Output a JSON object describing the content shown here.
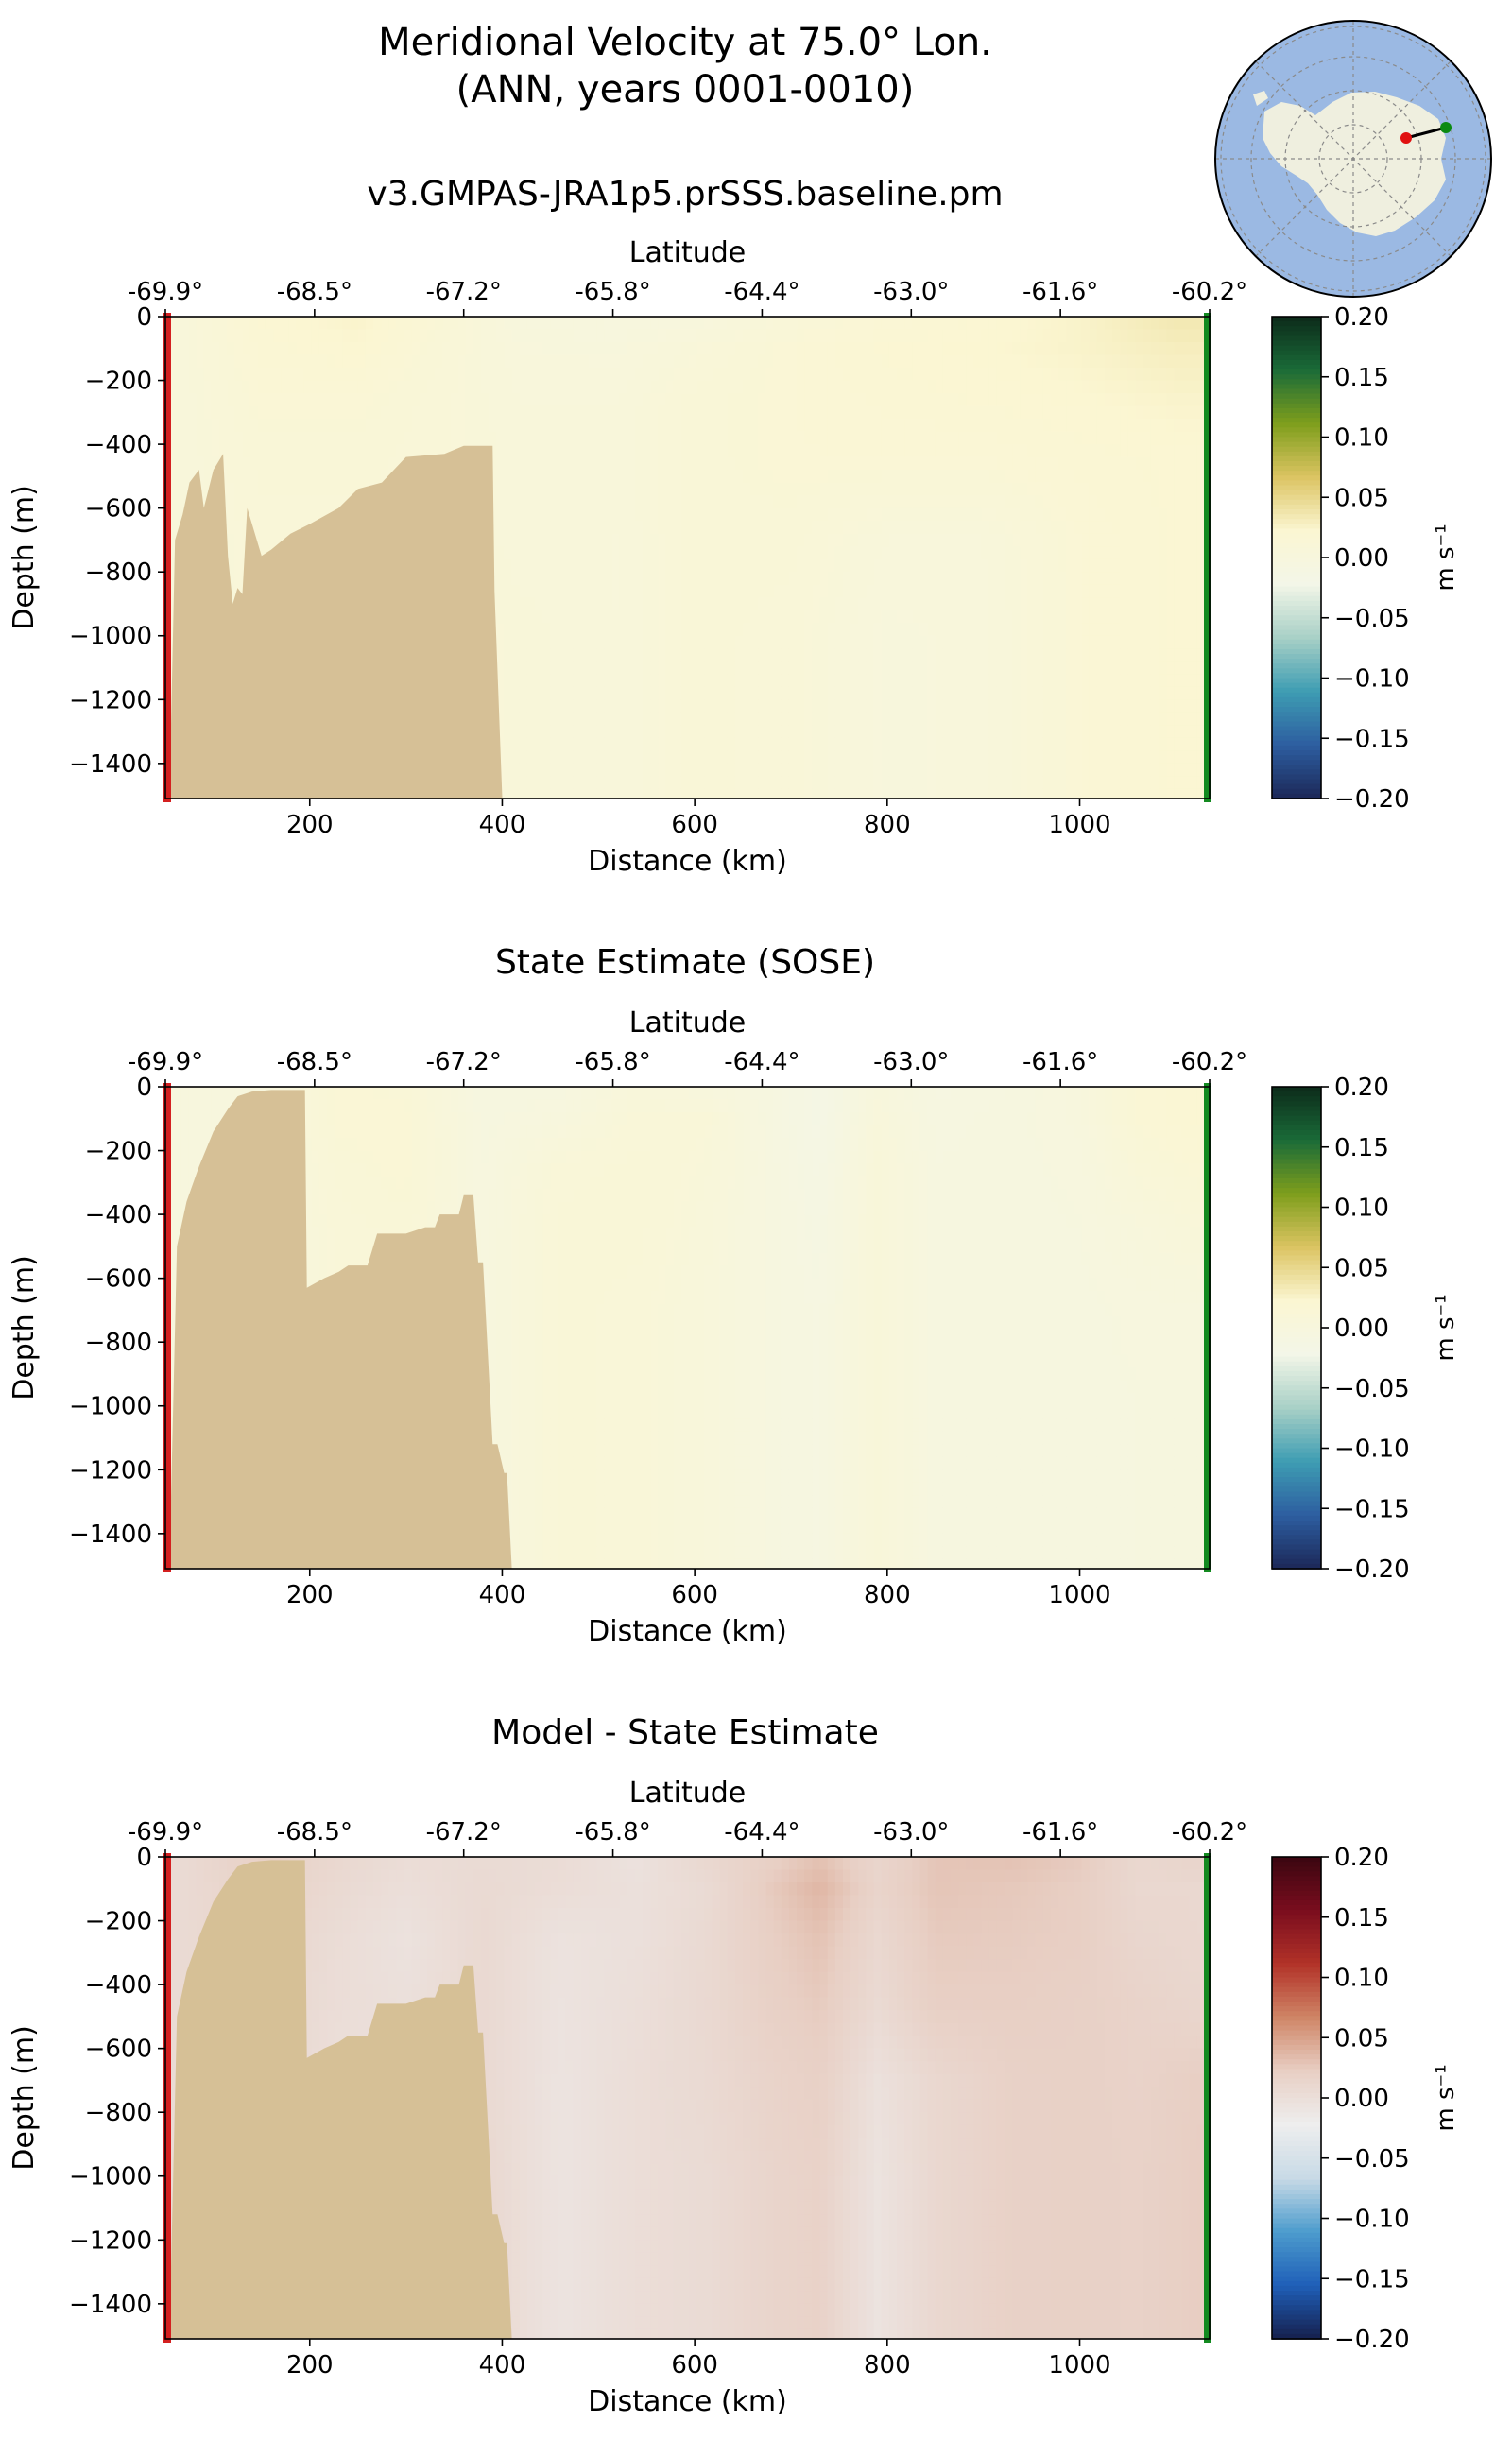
{
  "figure": {
    "title_line1": "Meridional Velocity at 75.0° Lon.",
    "title_line2": "(ANN, years 0001-0010)"
  },
  "inset_map": {
    "ocean_color": "#9bb9e3",
    "land_color": "#efefdf",
    "start_marker_color": "#e01010",
    "end_marker_color": "#0b8a12"
  },
  "colors": {
    "bathymetry": "#d6c096",
    "start_line": "#d42020",
    "end_line": "#138a20",
    "missing": "#dde7f6"
  },
  "shared_axes": {
    "xlabel": "Distance (km)",
    "ylabel": "Depth (m)",
    "top_xlabel": "Latitude",
    "xlim": [
      50,
      1135
    ],
    "ylim": [
      -1510,
      0
    ],
    "xticks": [
      200,
      400,
      600,
      800,
      1000
    ],
    "xtick_labels": [
      "200",
      "400",
      "600",
      "800",
      "1000"
    ],
    "yticks": [
      0,
      -200,
      -400,
      -600,
      -800,
      -1000,
      -1200,
      -1400
    ],
    "ytick_labels": [
      "0",
      "−200",
      "−400",
      "−600",
      "−800",
      "−1000",
      "−1200",
      "−1400"
    ],
    "top_ticks_km": [
      50,
      205,
      360,
      515,
      670,
      825,
      980,
      1135
    ],
    "top_tick_labels": [
      "-69.9°",
      "-68.5°",
      "-67.2°",
      "-65.8°",
      "-64.4°",
      "-63.0°",
      "-61.6°",
      "-60.2°"
    ]
  },
  "colorbar": {
    "label": "m s⁻¹",
    "range": [
      -0.2,
      0.2
    ],
    "ticks": [
      0.2,
      0.15,
      0.1,
      0.05,
      0.0,
      -0.05,
      -0.1,
      -0.15,
      -0.2
    ],
    "tick_labels": [
      "0.20",
      "0.15",
      "0.10",
      "0.05",
      "0.00",
      "−0.05",
      "−0.10",
      "−0.15",
      "−0.20"
    ]
  },
  "chart_data": [
    {
      "type": "heatmap",
      "title": "v3.GMPAS-JRA1p5.prSSS.baseline.pm",
      "colormap": "velocity",
      "colormap_stops": [
        "#1c2858",
        "#2d5ea0",
        "#3e9db3",
        "#a8d0c6",
        "#f3f6e8",
        "#fbf6d2",
        "#dcc462",
        "#7e9e1c",
        "#1a6b38",
        "#0c2a1a"
      ],
      "x_km": [
        60,
        150,
        250,
        330,
        420,
        520,
        600,
        700,
        800,
        900,
        1000,
        1100
      ],
      "depth_m": [
        0,
        -100,
        -250,
        -450,
        -700,
        -1000,
        -1300,
        -1500
      ],
      "velocity_m_s": [
        [
          0.005,
          0.02,
          0.025,
          0.015,
          0.0,
          -0.002,
          0.0,
          0.01,
          0.015,
          0.02,
          0.025,
          0.035
        ],
        [
          0.005,
          0.018,
          0.022,
          0.012,
          0.003,
          0.002,
          0.008,
          0.015,
          0.02,
          0.022,
          0.025,
          0.03
        ],
        [
          0.005,
          0.015,
          0.015,
          0.01,
          0.005,
          0.005,
          0.012,
          0.015,
          0.018,
          0.02,
          0.022,
          0.025
        ],
        [
          0.005,
          0.012,
          0.012,
          0.01,
          0.006,
          0.006,
          0.012,
          0.015,
          0.015,
          0.015,
          0.018,
          0.02
        ],
        [
          0.005,
          0.01,
          0.01,
          0.01,
          0.006,
          0.005,
          0.012,
          0.012,
          0.005,
          0.005,
          0.015,
          0.02
        ],
        [
          0.005,
          0.01,
          0.01,
          0.01,
          0.008,
          0.005,
          0.012,
          0.01,
          0.002,
          0.004,
          0.015,
          0.02
        ],
        [
          0.005,
          0.01,
          0.01,
          0.01,
          0.008,
          0.005,
          0.012,
          0.01,
          0.002,
          0.004,
          0.015,
          0.02
        ],
        [
          0.005,
          0.01,
          0.01,
          0.01,
          0.008,
          0.005,
          0.012,
          0.01,
          0.002,
          0.004,
          0.015,
          0.02
        ]
      ],
      "seafloor_km": [
        50,
        55,
        60,
        68,
        75,
        85,
        90,
        100,
        110,
        115,
        120,
        125,
        130,
        135,
        150,
        160,
        180,
        200,
        230,
        250,
        275,
        300,
        340,
        360,
        370,
        390,
        392,
        400
      ],
      "seafloor_depth_m": [
        -1510,
        -1400,
        -700,
        -620,
        -520,
        -480,
        -600,
        -480,
        -430,
        -750,
        -900,
        -850,
        -870,
        -600,
        -750,
        -730,
        -680,
        -650,
        -600,
        -540,
        -520,
        -440,
        -430,
        -405,
        -405,
        -405,
        -860,
        -1510
      ]
    },
    {
      "type": "heatmap",
      "title": "State Estimate (SOSE)",
      "colormap": "velocity",
      "colormap_stops": [
        "#1c2858",
        "#2d5ea0",
        "#3e9db3",
        "#a8d0c6",
        "#f3f6e8",
        "#fbf6d2",
        "#dcc462",
        "#7e9e1c",
        "#1a6b38",
        "#0c2a1a"
      ],
      "x_km": [
        60,
        150,
        230,
        300,
        380,
        460,
        540,
        610,
        680,
        730,
        790,
        850,
        930,
        1000,
        1060,
        1120
      ],
      "depth_m": [
        0,
        -100,
        -250,
        -450,
        -700,
        -1000,
        -1300,
        -1500
      ],
      "velocity_m_s": [
        [
          0.0,
          0.0,
          0.015,
          0.012,
          -0.005,
          -0.005,
          0.005,
          0.0,
          -0.005,
          -0.015,
          0.002,
          -0.008,
          -0.005,
          0.0,
          0.015,
          0.02
        ],
        [
          0.0,
          0.0,
          0.015,
          0.015,
          -0.004,
          0.0,
          0.01,
          0.01,
          -0.005,
          -0.015,
          0.005,
          -0.006,
          -0.004,
          0.0,
          0.015,
          0.02
        ],
        [
          0.0,
          0.0,
          0.012,
          0.015,
          -0.003,
          0.01,
          0.012,
          0.008,
          -0.004,
          -0.012,
          0.008,
          -0.005,
          -0.004,
          -0.002,
          0.01,
          0.015
        ],
        [
          0.0,
          0.0,
          0.01,
          0.012,
          -0.002,
          0.012,
          0.012,
          0.006,
          -0.004,
          -0.01,
          0.008,
          -0.005,
          -0.004,
          -0.003,
          0.002,
          0.008
        ],
        [
          0.0,
          0.0,
          0.01,
          0.01,
          -0.002,
          0.012,
          0.01,
          0.005,
          -0.004,
          -0.008,
          0.008,
          -0.005,
          -0.004,
          -0.004,
          -0.002,
          -0.002
        ],
        [
          0.0,
          0.0,
          0.01,
          0.01,
          -0.002,
          0.012,
          0.01,
          0.005,
          -0.004,
          -0.008,
          0.008,
          -0.005,
          -0.004,
          -0.004,
          -0.003,
          -0.003
        ],
        [
          0.0,
          0.0,
          0.01,
          0.01,
          -0.002,
          0.012,
          0.01,
          0.005,
          -0.004,
          -0.008,
          0.008,
          -0.005,
          -0.004,
          -0.004,
          -0.003,
          -0.003
        ],
        [
          0.0,
          0.0,
          0.01,
          0.01,
          -0.002,
          0.012,
          0.01,
          0.005,
          -0.004,
          -0.008,
          0.008,
          -0.005,
          -0.004,
          -0.004,
          -0.003,
          -0.003
        ]
      ],
      "seafloor_km": [
        50,
        55,
        62,
        72,
        85,
        100,
        115,
        125,
        140,
        160,
        195,
        197,
        215,
        230,
        240,
        260,
        270,
        300,
        320,
        330,
        335,
        355,
        360,
        370,
        375,
        380,
        390,
        395,
        402,
        405,
        410
      ],
      "seafloor_depth_m": [
        -1510,
        -1400,
        -500,
        -360,
        -250,
        -140,
        -70,
        -30,
        -15,
        -10,
        -10,
        -630,
        -600,
        -580,
        -560,
        -560,
        -460,
        -460,
        -440,
        -440,
        -400,
        -400,
        -340,
        -340,
        -550,
        -550,
        -1120,
        -1120,
        -1210,
        -1210,
        -1510
      ]
    },
    {
      "type": "heatmap",
      "title": "Model - State Estimate",
      "colormap": "difference",
      "colormap_stops": [
        "#16204e",
        "#1f5fb8",
        "#4d9ccd",
        "#c8dae6",
        "#eeeeee",
        "#e8cfc4",
        "#cf8566",
        "#b23228",
        "#7a0d1e",
        "#3a0610"
      ],
      "x_km": [
        60,
        150,
        230,
        300,
        380,
        460,
        540,
        610,
        680,
        730,
        790,
        850,
        930,
        1000,
        1060,
        1120
      ],
      "depth_m": [
        0,
        -100,
        -250,
        -450,
        -700,
        -1000,
        -1300,
        -1500
      ],
      "velocity_m_s": [
        [
          0.005,
          0.02,
          0.01,
          0.003,
          0.005,
          0.004,
          -0.005,
          0.01,
          0.02,
          0.03,
          0.013,
          0.028,
          0.03,
          0.025,
          0.01,
          0.015
        ],
        [
          0.005,
          0.018,
          0.007,
          0.0,
          0.007,
          0.002,
          -0.002,
          0.005,
          0.025,
          0.037,
          0.015,
          0.028,
          0.026,
          0.022,
          0.01,
          0.01
        ],
        [
          0.005,
          0.015,
          0.003,
          -0.005,
          0.008,
          -0.005,
          -0.002,
          0.007,
          0.022,
          0.03,
          0.01,
          0.025,
          0.024,
          0.022,
          0.012,
          0.01
        ],
        [
          0.005,
          0.012,
          0.002,
          -0.002,
          0.008,
          -0.006,
          0.0,
          0.008,
          0.02,
          0.025,
          0.007,
          0.022,
          0.022,
          0.02,
          0.016,
          0.012
        ],
        [
          0.005,
          0.01,
          0.0,
          0.0,
          0.008,
          -0.007,
          0.002,
          0.007,
          0.016,
          0.02,
          -0.003,
          0.01,
          0.019,
          0.02,
          0.017,
          0.022
        ],
        [
          0.005,
          0.01,
          0.0,
          0.0,
          0.01,
          -0.007,
          0.002,
          0.005,
          0.014,
          0.018,
          -0.006,
          0.01,
          0.019,
          0.02,
          0.018,
          0.023
        ],
        [
          0.005,
          0.01,
          0.0,
          0.0,
          0.01,
          -0.007,
          0.002,
          0.005,
          0.014,
          0.018,
          -0.006,
          0.01,
          0.019,
          0.02,
          0.018,
          0.023
        ],
        [
          0.005,
          0.01,
          0.0,
          0.0,
          0.01,
          -0.007,
          0.002,
          0.005,
          0.014,
          0.018,
          -0.006,
          0.01,
          0.019,
          0.02,
          0.018,
          0.023
        ]
      ],
      "seafloor_km": [
        50,
        55,
        62,
        72,
        85,
        100,
        115,
        125,
        140,
        160,
        195,
        197,
        215,
        230,
        240,
        260,
        270,
        300,
        320,
        330,
        335,
        355,
        360,
        370,
        375,
        380,
        390,
        395,
        402,
        405,
        410
      ],
      "seafloor_depth_m": [
        -1510,
        -1400,
        -500,
        -360,
        -250,
        -140,
        -70,
        -30,
        -15,
        -10,
        -10,
        -630,
        -600,
        -580,
        -560,
        -560,
        -460,
        -460,
        -440,
        -440,
        -400,
        -400,
        -340,
        -340,
        -550,
        -550,
        -1120,
        -1120,
        -1210,
        -1210,
        -1510
      ]
    }
  ]
}
